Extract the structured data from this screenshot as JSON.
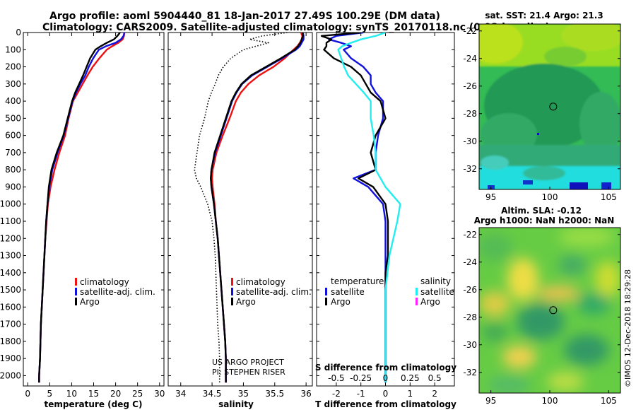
{
  "title": {
    "line1": "Argo profile: aoml 5904440_81 18-Jan-2017 27.49S 100.29E (DM data)",
    "line2": "Climatology: CARS2009. Satellite-adjusted climatology: synTS_20170118.nc (0.93d earlier)"
  },
  "colors": {
    "climatology": "#ee1111",
    "satellite": "#1111dd",
    "argo": "#000000",
    "salinity_satellite": "#22eeee",
    "salinity_argo": "#ff22ff"
  },
  "depth_axis": {
    "ylim": [
      0,
      2060
    ],
    "ticks": [
      0,
      100,
      200,
      300,
      400,
      500,
      600,
      700,
      800,
      900,
      1000,
      1100,
      1200,
      1300,
      1400,
      1500,
      1600,
      1700,
      1800,
      1900,
      2000
    ]
  },
  "legend_labels": {
    "climatology": "climatology",
    "satellite_clim": "satellite-adj. clim.",
    "argo": "Argo",
    "temperature_header": "temperature",
    "salinity_header": "salinity",
    "satellite": "satellite"
  },
  "credits": {
    "project": "US ARGO PROJECT",
    "pi": "PI: STEPHEN RISER"
  },
  "map_panels": {
    "sst_title": "sat. SST: 21.4 Argo: 21.3",
    "sla_title1": "Altim. SLA: -0.12",
    "sla_title2": "Argo h1000: NaN h2000: NaN",
    "lat_ticks": [
      -22,
      -24,
      -26,
      -28,
      -30,
      -32
    ],
    "lon_ticks": [
      95,
      100,
      105
    ],
    "lat_range": [
      -33.5,
      -21.5
    ],
    "lon_range": [
      94,
      106
    ],
    "float_position": {
      "lat": -27.49,
      "lon": 100.29
    }
  },
  "imos_stamp": "©IMOS 12-Dec-2018 18:29:28",
  "chart_data": [
    {
      "type": "line",
      "name": "temperature",
      "xlabel": "temperature (deg C)",
      "ylabel": "depth",
      "xlim": [
        -1,
        31
      ],
      "xticks": [
        0,
        5,
        10,
        15,
        20,
        25,
        30
      ],
      "depth": [
        0,
        20,
        40,
        60,
        80,
        100,
        150,
        200,
        250,
        300,
        350,
        400,
        500,
        600,
        700,
        800,
        900,
        1000,
        1100,
        1200,
        1300,
        1400,
        1500,
        1600,
        1700,
        1800,
        1900,
        2000,
        2040
      ],
      "series": [
        {
          "name": "climatology",
          "color_key": "climatology",
          "values": [
            22.0,
            21.9,
            21.6,
            20.6,
            19.2,
            18.0,
            16.3,
            14.8,
            13.6,
            12.5,
            11.4,
            10.3,
            9.3,
            8.5,
            7.2,
            6.1,
            5.2,
            4.6,
            4.3,
            4.0,
            3.8,
            3.6,
            3.4,
            3.2,
            3.0,
            2.9,
            2.8,
            2.6,
            2.6
          ]
        },
        {
          "name": "satellite-adj. clim.",
          "color_key": "satellite",
          "values": [
            22.0,
            21.8,
            21.2,
            20.0,
            17.8,
            16.2,
            14.9,
            13.9,
            13.1,
            12.0,
            11.0,
            10.2,
            9.2,
            8.2,
            6.8,
            5.6,
            4.9,
            4.5,
            4.2,
            4.0,
            3.8,
            3.6,
            3.4,
            3.2,
            3.0,
            2.9,
            2.8,
            2.6,
            2.6
          ]
        },
        {
          "name": "Argo",
          "color_key": "argo",
          "values": [
            21.0,
            20.4,
            19.6,
            18.0,
            16.6,
            15.4,
            14.2,
            13.4,
            12.6,
            11.7,
            10.8,
            10.1,
            9.1,
            8.1,
            6.6,
            5.4,
            4.8,
            4.5,
            4.2,
            4.0,
            3.8,
            3.6,
            3.4,
            3.2,
            3.0,
            2.9,
            2.8,
            2.6,
            2.6
          ]
        }
      ]
    },
    {
      "type": "line",
      "name": "salinity",
      "xlabel": "salinity",
      "xlim": [
        33.8,
        36.1
      ],
      "xticks": [
        34,
        34.5,
        35,
        35.5,
        36
      ],
      "xtick_labels": [
        "34",
        "34.5",
        "35",
        "35.5",
        "36"
      ],
      "depth": [
        0,
        20,
        40,
        60,
        80,
        100,
        150,
        200,
        250,
        300,
        350,
        400,
        500,
        600,
        700,
        800,
        850,
        900,
        1000,
        1100,
        1200,
        1300,
        1400,
        1500,
        1600,
        1700,
        1800,
        1900,
        2000,
        2040
      ],
      "series": [
        {
          "name": "climatology",
          "color_key": "climatology",
          "values": [
            35.92,
            35.94,
            35.93,
            35.9,
            35.86,
            35.8,
            35.66,
            35.48,
            35.25,
            35.08,
            34.96,
            34.88,
            34.78,
            34.67,
            34.57,
            34.51,
            34.5,
            34.51,
            34.54,
            34.56,
            34.59,
            34.61,
            34.63,
            34.65,
            34.67,
            34.69,
            34.71,
            34.72,
            34.72,
            34.72
          ]
        },
        {
          "name": "satellite-adj. clim.",
          "color_key": "satellite",
          "values": [
            35.95,
            35.96,
            35.96,
            35.93,
            35.9,
            35.84,
            35.62,
            35.38,
            35.14,
            34.98,
            34.89,
            34.82,
            34.73,
            34.64,
            34.55,
            34.49,
            34.48,
            34.49,
            34.53,
            34.56,
            34.59,
            34.61,
            34.63,
            34.65,
            34.67,
            34.69,
            34.71,
            34.72,
            34.72,
            34.72
          ]
        },
        {
          "name": "Argo",
          "color_key": "argo",
          "values": [
            35.94,
            35.95,
            35.93,
            35.91,
            35.87,
            35.82,
            35.6,
            35.36,
            35.12,
            34.97,
            34.88,
            34.81,
            34.72,
            34.63,
            34.54,
            34.49,
            34.48,
            34.49,
            34.53,
            34.56,
            34.59,
            34.61,
            34.63,
            34.65,
            34.67,
            34.69,
            34.71,
            34.72,
            34.72,
            34.72
          ]
        },
        {
          "name": "dotted profiles",
          "color_key": "argo",
          "style": "dotted",
          "values": [
            35.7,
            35.3,
            35.1,
            35.4,
            35.2,
            35.0,
            34.8,
            34.68,
            34.6,
            34.55,
            34.49,
            34.44,
            34.38,
            34.3,
            34.26,
            34.22,
            34.25,
            34.32,
            34.43,
            34.5,
            34.53,
            34.55,
            34.56,
            34.57,
            34.58,
            34.59,
            34.61,
            34.62,
            34.62,
            34.62
          ]
        }
      ]
    },
    {
      "type": "line",
      "name": "difference from climatology",
      "xlabel": "T difference from climatology",
      "x2label": "S difference from climatology",
      "xlim": [
        -2.8,
        2.8
      ],
      "xticks": [
        -2,
        -1,
        0,
        1,
        2
      ],
      "xtick_labels": [
        "-2",
        "-1",
        "0",
        "1",
        "2"
      ],
      "s_ticks": [
        -0.5,
        -0.25,
        0,
        0.25,
        0.5
      ],
      "s_tick_labels": [
        "-0.5",
        "-0.25",
        "0",
        "0.25",
        "0.5"
      ],
      "depth": [
        0,
        20,
        40,
        60,
        80,
        100,
        150,
        200,
        250,
        300,
        350,
        400,
        500,
        600,
        700,
        800,
        850,
        900,
        1000,
        1100,
        1200,
        1300,
        1400,
        1500,
        1600,
        1700,
        1800,
        1900,
        2000,
        2040
      ],
      "series": [
        {
          "name": "temperature satellite",
          "color_key": "satellite",
          "values": [
            -0.9,
            -2.0,
            -2.3,
            -1.8,
            -1.4,
            -1.7,
            -1.4,
            -0.9,
            -0.6,
            -0.6,
            -0.4,
            -0.1,
            -0.1,
            -0.3,
            -0.4,
            -0.4,
            -1.3,
            -0.7,
            -0.1,
            0.0,
            0.0,
            0.0,
            0.0,
            0.0,
            0.0,
            0.0,
            0.0,
            0.0,
            0.0,
            0.0
          ]
        },
        {
          "name": "temperature Argo",
          "color_key": "argo",
          "values": [
            -1.0,
            -2.6,
            -2.2,
            -2.4,
            -2.4,
            -2.5,
            -2.1,
            -1.4,
            -1.0,
            -0.8,
            -0.6,
            -0.2,
            0.0,
            -0.4,
            -0.6,
            -0.4,
            -1.1,
            -0.5,
            0.0,
            0.1,
            0.1,
            0.1,
            0.0,
            0.0,
            0.0,
            0.0,
            0.0,
            0.0,
            0.0,
            0.0
          ]
        },
        {
          "name": "salinity satellite",
          "color_key": "salinity_satellite",
          "values": [
            0.0,
            -0.1,
            -0.25,
            -0.35,
            -0.44,
            -0.48,
            -0.45,
            -0.42,
            -0.38,
            -0.3,
            -0.22,
            -0.15,
            -0.15,
            -0.12,
            -0.1,
            -0.1,
            -0.05,
            0.0,
            0.15,
            0.12,
            0.08,
            0.04,
            0.02,
            0.0,
            0.0,
            0.0,
            0.0,
            0.0,
            0.0,
            0.0
          ]
        }
      ]
    }
  ]
}
